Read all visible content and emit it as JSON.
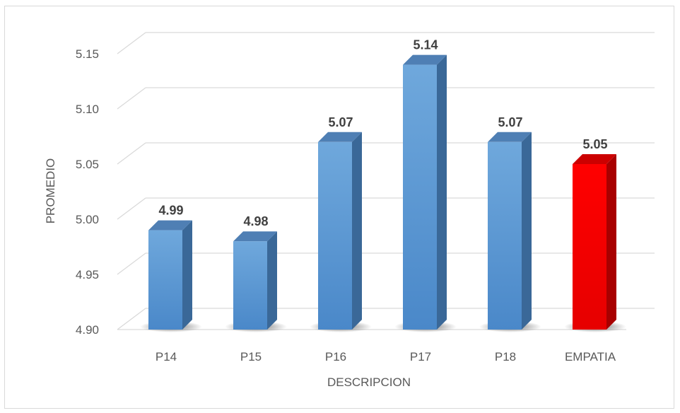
{
  "chart_data": {
    "type": "bar",
    "categories": [
      "P14",
      "P15",
      "P16",
      "P17",
      "P18",
      "EMPATIA"
    ],
    "values": [
      4.99,
      4.98,
      5.07,
      5.14,
      5.07,
      5.05
    ],
    "data_labels": [
      "4.99",
      "4.98",
      "5.07",
      "5.14",
      "5.07",
      "5.05"
    ],
    "y_ticks": [
      "4.90",
      "4.95",
      "5.00",
      "5.05",
      "5.10",
      "5.15"
    ],
    "ylim": [
      4.9,
      5.175
    ],
    "xlabel": "DESCRIPCION",
    "ylabel": "PROMEDIO",
    "grid": true,
    "style": "3d-column",
    "colors": {
      "bar": "#5b9bd5",
      "highlight": "#ff0000",
      "grid": "#d9d9d9",
      "text": "#595959",
      "label": "#404040"
    },
    "highlight_category": "EMPATIA"
  }
}
